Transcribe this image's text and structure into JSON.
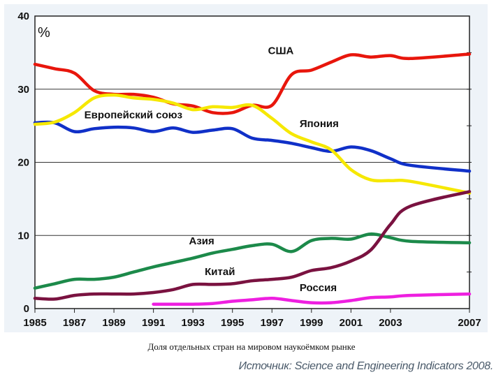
{
  "caption": "Доля отдельных стран на мировом наукоёмком рынке",
  "source": "Источник: Science and Engineering Indicators 2008.",
  "chart_data": {
    "type": "line",
    "ylabel": "%",
    "xlim": [
      1985,
      2007
    ],
    "ylim": [
      0,
      40
    ],
    "grid": true,
    "xticks": [
      1985,
      1987,
      1989,
      1991,
      1993,
      1995,
      1997,
      1999,
      2001,
      2003,
      2007
    ],
    "xtick_labels": [
      "1985",
      "1987",
      "1989",
      "1991",
      "1993",
      "1995",
      "1997",
      "1999",
      "2001",
      "2003",
      "2007"
    ],
    "yticks": [
      0,
      10,
      20,
      30,
      40
    ],
    "ytick_labels": [
      "0",
      "10",
      "20",
      "30",
      "40"
    ],
    "series": [
      {
        "name": "США",
        "color": "#e8160c",
        "x": [
          1985,
          1986,
          1987,
          1988,
          1989,
          1990,
          1991,
          1992,
          1993,
          1994,
          1995,
          1996,
          1997,
          1998,
          1999,
          2000,
          2001,
          2002,
          2003,
          2004,
          2007
        ],
        "y": [
          33.4,
          32.8,
          32.2,
          29.8,
          29.3,
          29.3,
          28.9,
          28.0,
          27.7,
          26.8,
          26.8,
          27.8,
          27.8,
          32.0,
          32.6,
          33.7,
          34.7,
          34.4,
          34.6,
          34.2,
          34.8
        ],
        "label_x": 1996.8,
        "label_y": 34.8
      },
      {
        "name": "Европейский союз",
        "color": "#1030c8",
        "x": [
          1985,
          1986,
          1987,
          1988,
          1989,
          1990,
          1991,
          1992,
          1993,
          1994,
          1995,
          1996,
          1997,
          1998,
          1999,
          2000,
          2001,
          2002,
          2003,
          2004,
          2007
        ],
        "y": [
          25.4,
          25.4,
          24.2,
          24.6,
          24.8,
          24.7,
          24.2,
          24.7,
          24.1,
          24.4,
          24.6,
          23.3,
          23.0,
          22.6,
          22.0,
          21.5,
          22.1,
          21.6,
          20.5,
          19.6,
          18.8
        ],
        "label_x": 1987.5,
        "label_y": 26.0
      },
      {
        "name": "Япония",
        "color": "#f6e800",
        "x": [
          1985,
          1986,
          1987,
          1988,
          1989,
          1990,
          1991,
          1992,
          1993,
          1994,
          1995,
          1996,
          1997,
          1998,
          1999,
          2000,
          2001,
          2002,
          2003,
          2004,
          2007
        ],
        "y": [
          25.2,
          25.5,
          26.8,
          28.8,
          29.2,
          28.8,
          28.6,
          28.1,
          27.2,
          27.6,
          27.5,
          27.8,
          26.0,
          23.9,
          22.8,
          21.7,
          19.0,
          17.6,
          17.5,
          17.4,
          15.8
        ],
        "label_x": 1998.4,
        "label_y": 24.8
      },
      {
        "name": "Азия",
        "color": "#1c8a4a",
        "x": [
          1985,
          1986,
          1987,
          1988,
          1989,
          1990,
          1991,
          1992,
          1993,
          1994,
          1995,
          1996,
          1997,
          1998,
          1999,
          2000,
          2001,
          2002,
          2003,
          2004,
          2007
        ],
        "y": [
          2.8,
          3.4,
          4.0,
          4.0,
          4.3,
          5.0,
          5.7,
          6.3,
          6.9,
          7.6,
          8.1,
          8.6,
          8.8,
          7.8,
          9.3,
          9.6,
          9.5,
          10.2,
          9.7,
          9.2,
          9.0
        ],
        "label_x": 1992.8,
        "label_y": 8.8
      },
      {
        "name": "Китай",
        "color": "#7a1240",
        "x": [
          1985,
          1986,
          1987,
          1988,
          1989,
          1990,
          1991,
          1992,
          1993,
          1994,
          1995,
          1996,
          1997,
          1998,
          1999,
          2000,
          2001,
          2002,
          2003,
          2004,
          2007
        ],
        "y": [
          1.4,
          1.3,
          1.8,
          2.0,
          2.0,
          2.0,
          2.2,
          2.6,
          3.3,
          3.3,
          3.4,
          3.8,
          4.0,
          4.3,
          5.2,
          5.6,
          6.5,
          8.0,
          11.5,
          14.0,
          16.0
        ],
        "label_x": 1993.6,
        "label_y": 4.6
      },
      {
        "name": "Россия",
        "color": "#ee1fe0",
        "x": [
          1991,
          1992,
          1993,
          1994,
          1995,
          1996,
          1997,
          1998,
          1999,
          2000,
          2001,
          2002,
          2003,
          2004,
          2007
        ],
        "y": [
          0.6,
          0.6,
          0.6,
          0.7,
          1.0,
          1.2,
          1.4,
          1.1,
          0.8,
          0.8,
          1.1,
          1.5,
          1.6,
          1.8,
          2.0
        ],
        "label_x": 1998.4,
        "label_y": 2.4
      }
    ]
  }
}
